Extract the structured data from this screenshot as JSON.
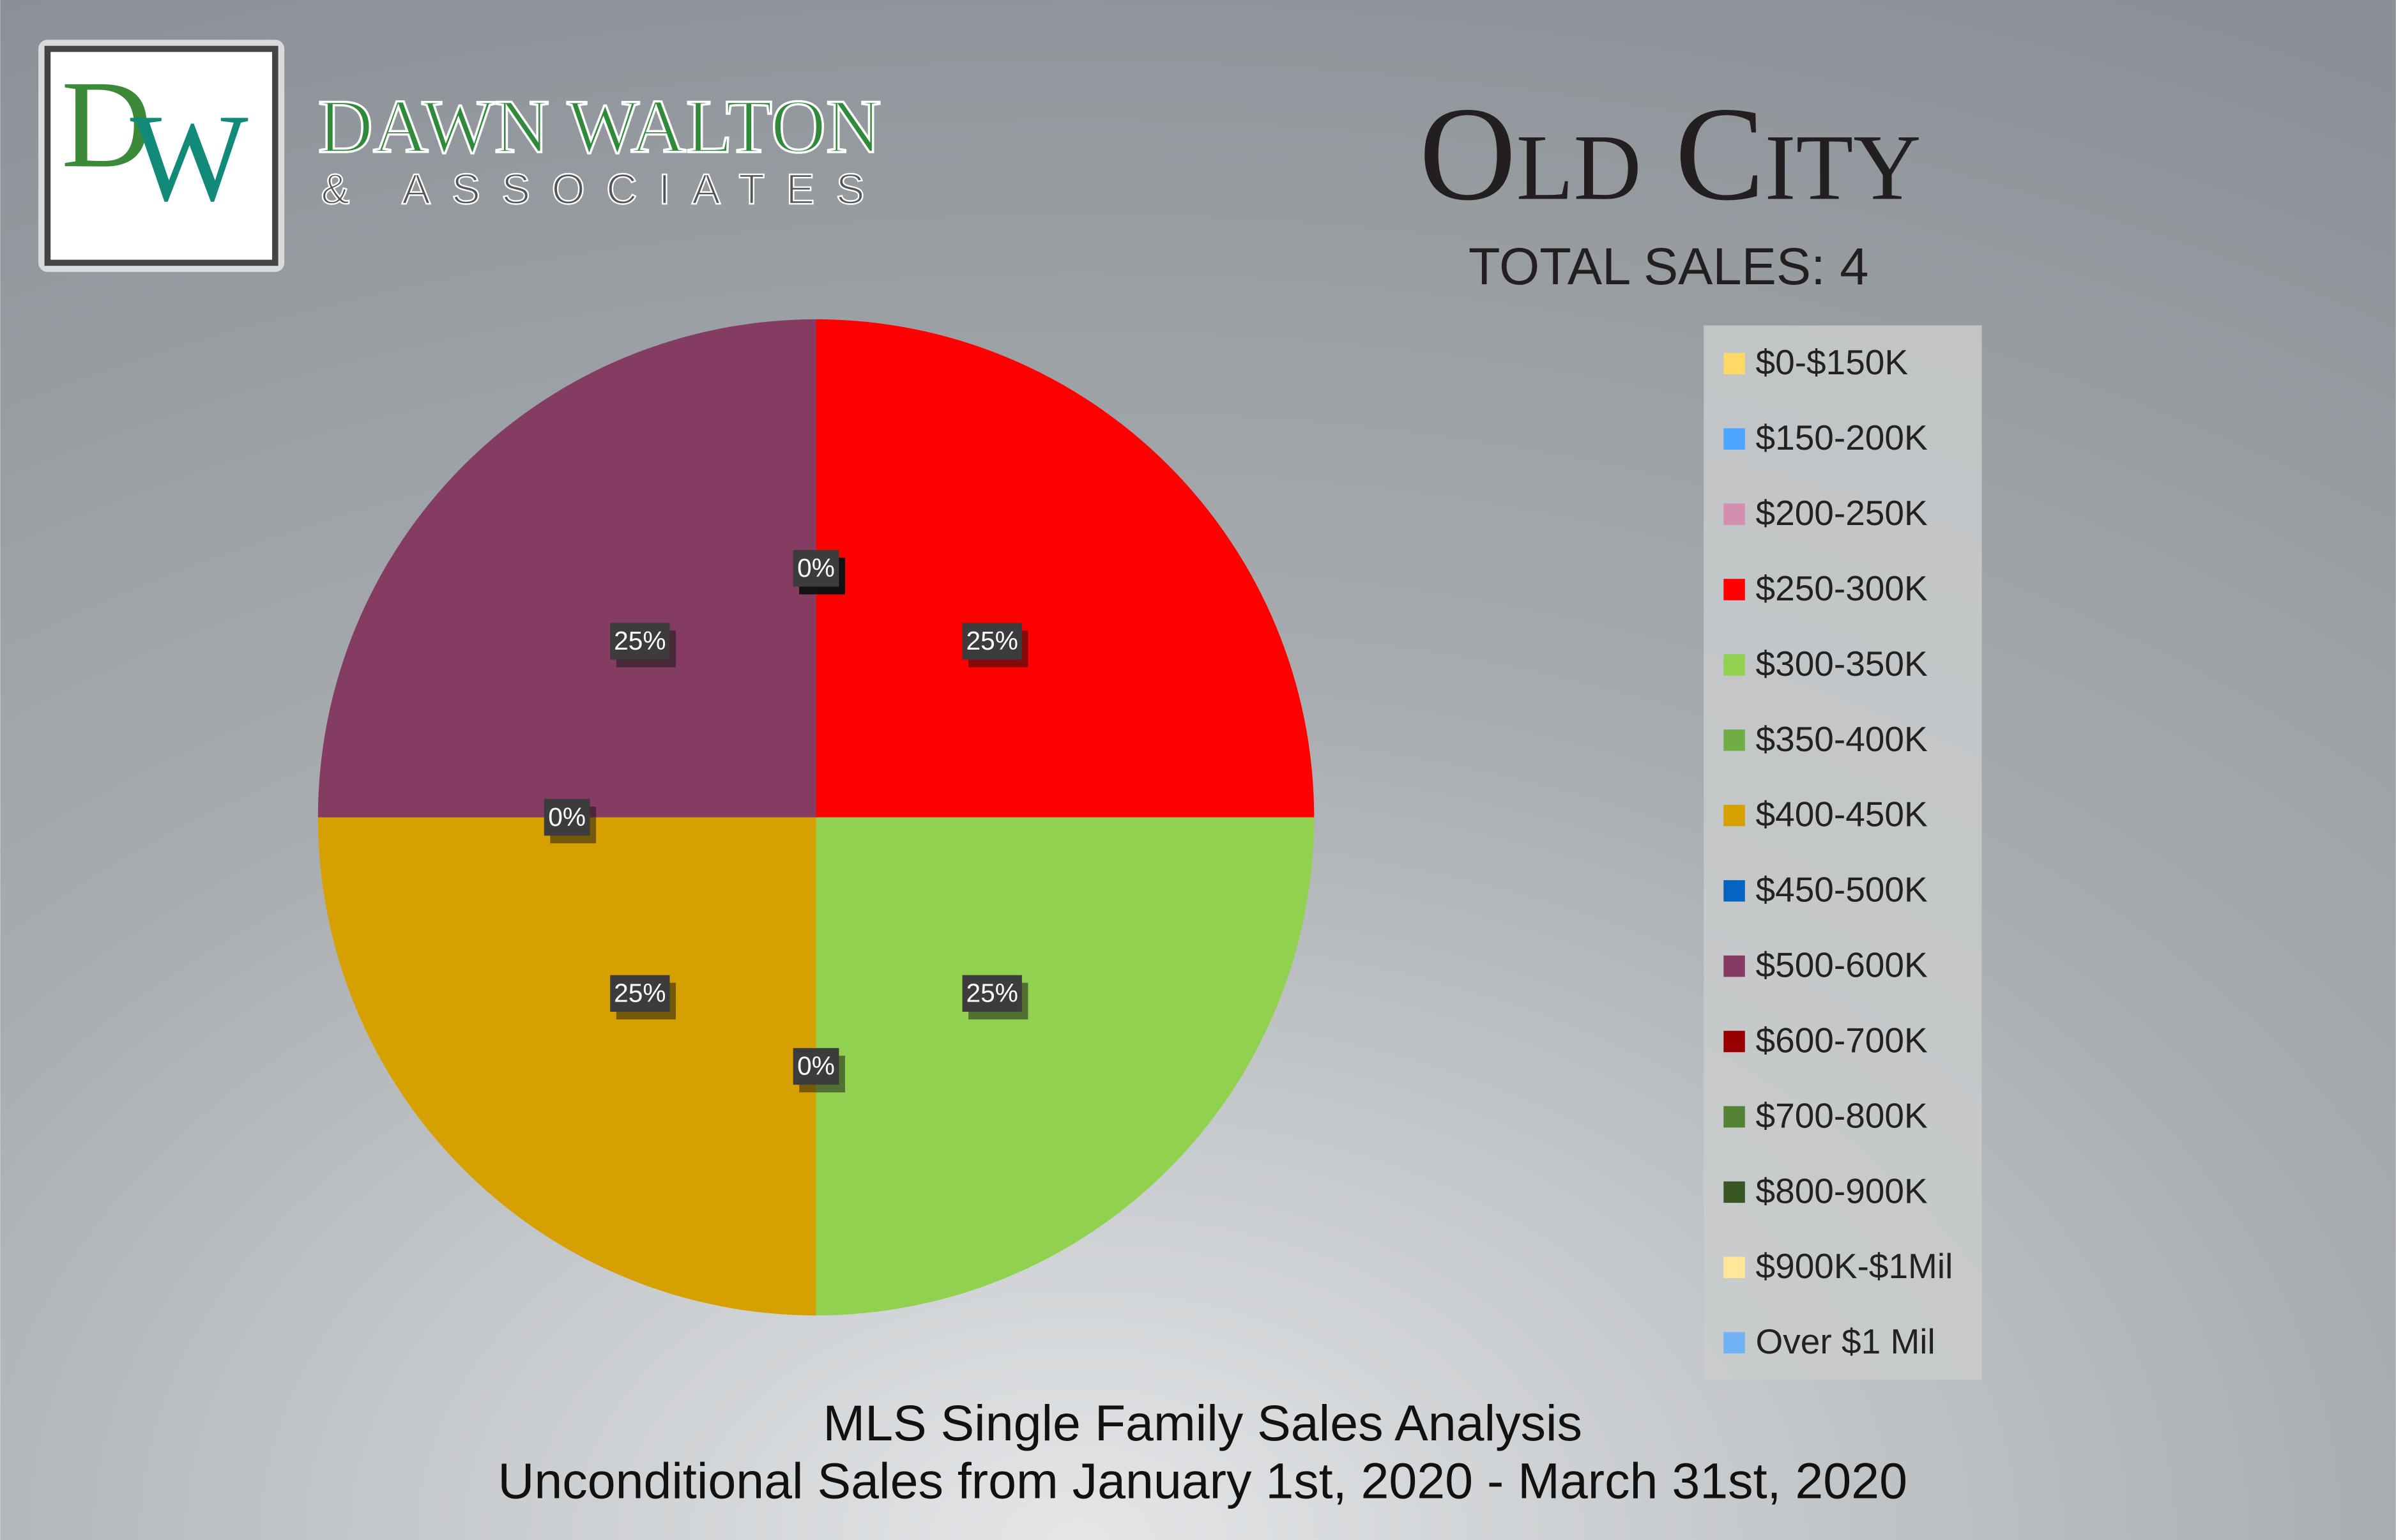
{
  "branding": {
    "logo_d": "D",
    "logo_w": "W",
    "name": "DAWN WALTON",
    "subname": "& ASSOCIATES"
  },
  "chart_data": {
    "type": "pie",
    "title": "Old City",
    "subtitle": "TOTAL SALES: 4",
    "footer": [
      "MLS Single Family Sales Analysis",
      "Unconditional Sales from January 1st, 2020 - March 31st, 2020"
    ],
    "categories": [
      "$0-$150K",
      "$150-200K",
      "$200-250K",
      "$250-300K",
      "$300-350K",
      "$350-400K",
      "$400-450K",
      "$450-500K",
      "$500-600K",
      "$600-700K",
      "$700-800K",
      "$800-900K",
      "$900K-$1Mil",
      "Over $1 Mil"
    ],
    "values": [
      0,
      0,
      0,
      25,
      25,
      0,
      25,
      0,
      25,
      0,
      0,
      0,
      0,
      0
    ],
    "value_labels": [
      "0%",
      "0%",
      "0%",
      "25%",
      "25%",
      "0%",
      "25%",
      "0%",
      "25%",
      "0%",
      "0%",
      "0%",
      "0%",
      "0%"
    ],
    "colors": [
      "#ffd966",
      "#4da6ff",
      "#d48fb0",
      "#ff0000",
      "#92d050",
      "#70ad47",
      "#d6a000",
      "#0563c1",
      "#843c62",
      "#990000",
      "#548235",
      "#375623",
      "#ffe699",
      "#6fb3f5"
    ],
    "legend": "right"
  }
}
